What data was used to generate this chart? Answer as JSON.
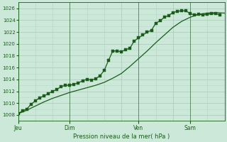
{
  "xlabel": "Pression niveau de la mer( hPa )",
  "bg_color": "#cce8d8",
  "grid_color_major": "#a8c8b8",
  "grid_color_minor": "#b8d8c8",
  "line_color": "#1a5c1a",
  "ylim": [
    1007,
    1027
  ],
  "yticks": [
    1008,
    1010,
    1012,
    1014,
    1016,
    1018,
    1020,
    1022,
    1024,
    1026
  ],
  "day_labels": [
    "Jeu",
    "Dim",
    "Ven",
    "Sam"
  ],
  "day_positions": [
    0,
    36,
    84,
    120
  ],
  "total_hours": 144,
  "line1_x": [
    0,
    3,
    6,
    9,
    12,
    15,
    18,
    21,
    24,
    27,
    30,
    33,
    36,
    39,
    42,
    45,
    48,
    51,
    54,
    57,
    60,
    63,
    66,
    69,
    72,
    75,
    78,
    81,
    84,
    87,
    90,
    93,
    96,
    99,
    102,
    105,
    108,
    111,
    114,
    117,
    120,
    123,
    126,
    129,
    132,
    135,
    138,
    141
  ],
  "line1_y": [
    1008.2,
    1008.7,
    1009.0,
    1009.8,
    1010.4,
    1010.9,
    1011.2,
    1011.6,
    1012.0,
    1012.3,
    1012.8,
    1013.0,
    1013.0,
    1013.2,
    1013.4,
    1013.8,
    1014.0,
    1013.9,
    1014.1,
    1014.6,
    1015.5,
    1017.2,
    1018.8,
    1018.8,
    1018.7,
    1019.0,
    1019.3,
    1020.5,
    1021.0,
    1021.5,
    1022.0,
    1022.3,
    1023.5,
    1023.9,
    1024.5,
    1024.8,
    1025.3,
    1025.5,
    1025.6,
    1025.6,
    1025.1,
    1024.9,
    1025.0,
    1024.9,
    1025.0,
    1025.1,
    1025.1,
    1024.9
  ],
  "line2_x": [
    0,
    6,
    12,
    18,
    24,
    30,
    36,
    42,
    48,
    54,
    60,
    66,
    72,
    78,
    84,
    90,
    96,
    102,
    108,
    114,
    120,
    126,
    132,
    138,
    144
  ],
  "line2_y": [
    1008.2,
    1008.8,
    1009.5,
    1010.2,
    1010.8,
    1011.3,
    1011.8,
    1012.2,
    1012.6,
    1013.0,
    1013.5,
    1014.2,
    1015.0,
    1016.2,
    1017.5,
    1018.8,
    1020.2,
    1021.5,
    1022.8,
    1023.8,
    1024.5,
    1025.0,
    1025.2,
    1025.3,
    1025.2
  ]
}
